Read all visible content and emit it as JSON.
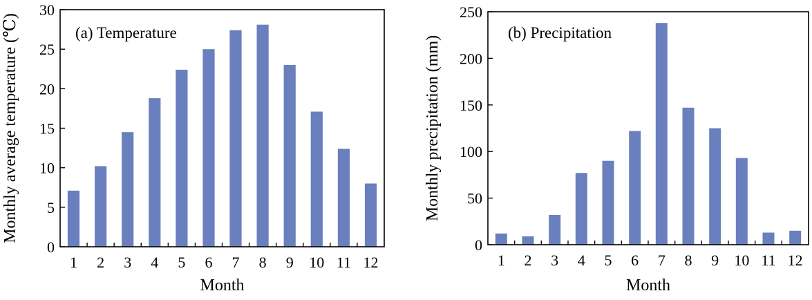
{
  "bar_color": "#6a7fbd",
  "chart_data": [
    {
      "type": "bar",
      "title": "(a) Temperature",
      "xlabel": "Month",
      "ylabel": "Monthly average temperature (℃)",
      "categories": [
        "1",
        "2",
        "3",
        "4",
        "5",
        "6",
        "7",
        "8",
        "9",
        "10",
        "11",
        "12"
      ],
      "values": [
        7.1,
        10.2,
        14.5,
        18.8,
        22.4,
        25.0,
        27.4,
        28.1,
        23.0,
        17.1,
        12.4,
        8.0
      ],
      "ylim": [
        0,
        30
      ],
      "yticks": [
        "0",
        "5",
        "10",
        "15",
        "20",
        "25",
        "30"
      ],
      "grid": false,
      "legend": "none"
    },
    {
      "type": "bar",
      "title": "(b) Precipitation",
      "xlabel": "Month",
      "ylabel": "Monthly precipitation (mm)",
      "categories": [
        "1",
        "2",
        "3",
        "4",
        "5",
        "6",
        "7",
        "8",
        "9",
        "10",
        "11",
        "12"
      ],
      "values": [
        12,
        9,
        32,
        77,
        90,
        122,
        238,
        147,
        125,
        93,
        13,
        15
      ],
      "ylim": [
        0,
        250
      ],
      "yticks": [
        "0",
        "50",
        "100",
        "150",
        "200",
        "250"
      ],
      "grid": false,
      "legend": "none"
    }
  ]
}
